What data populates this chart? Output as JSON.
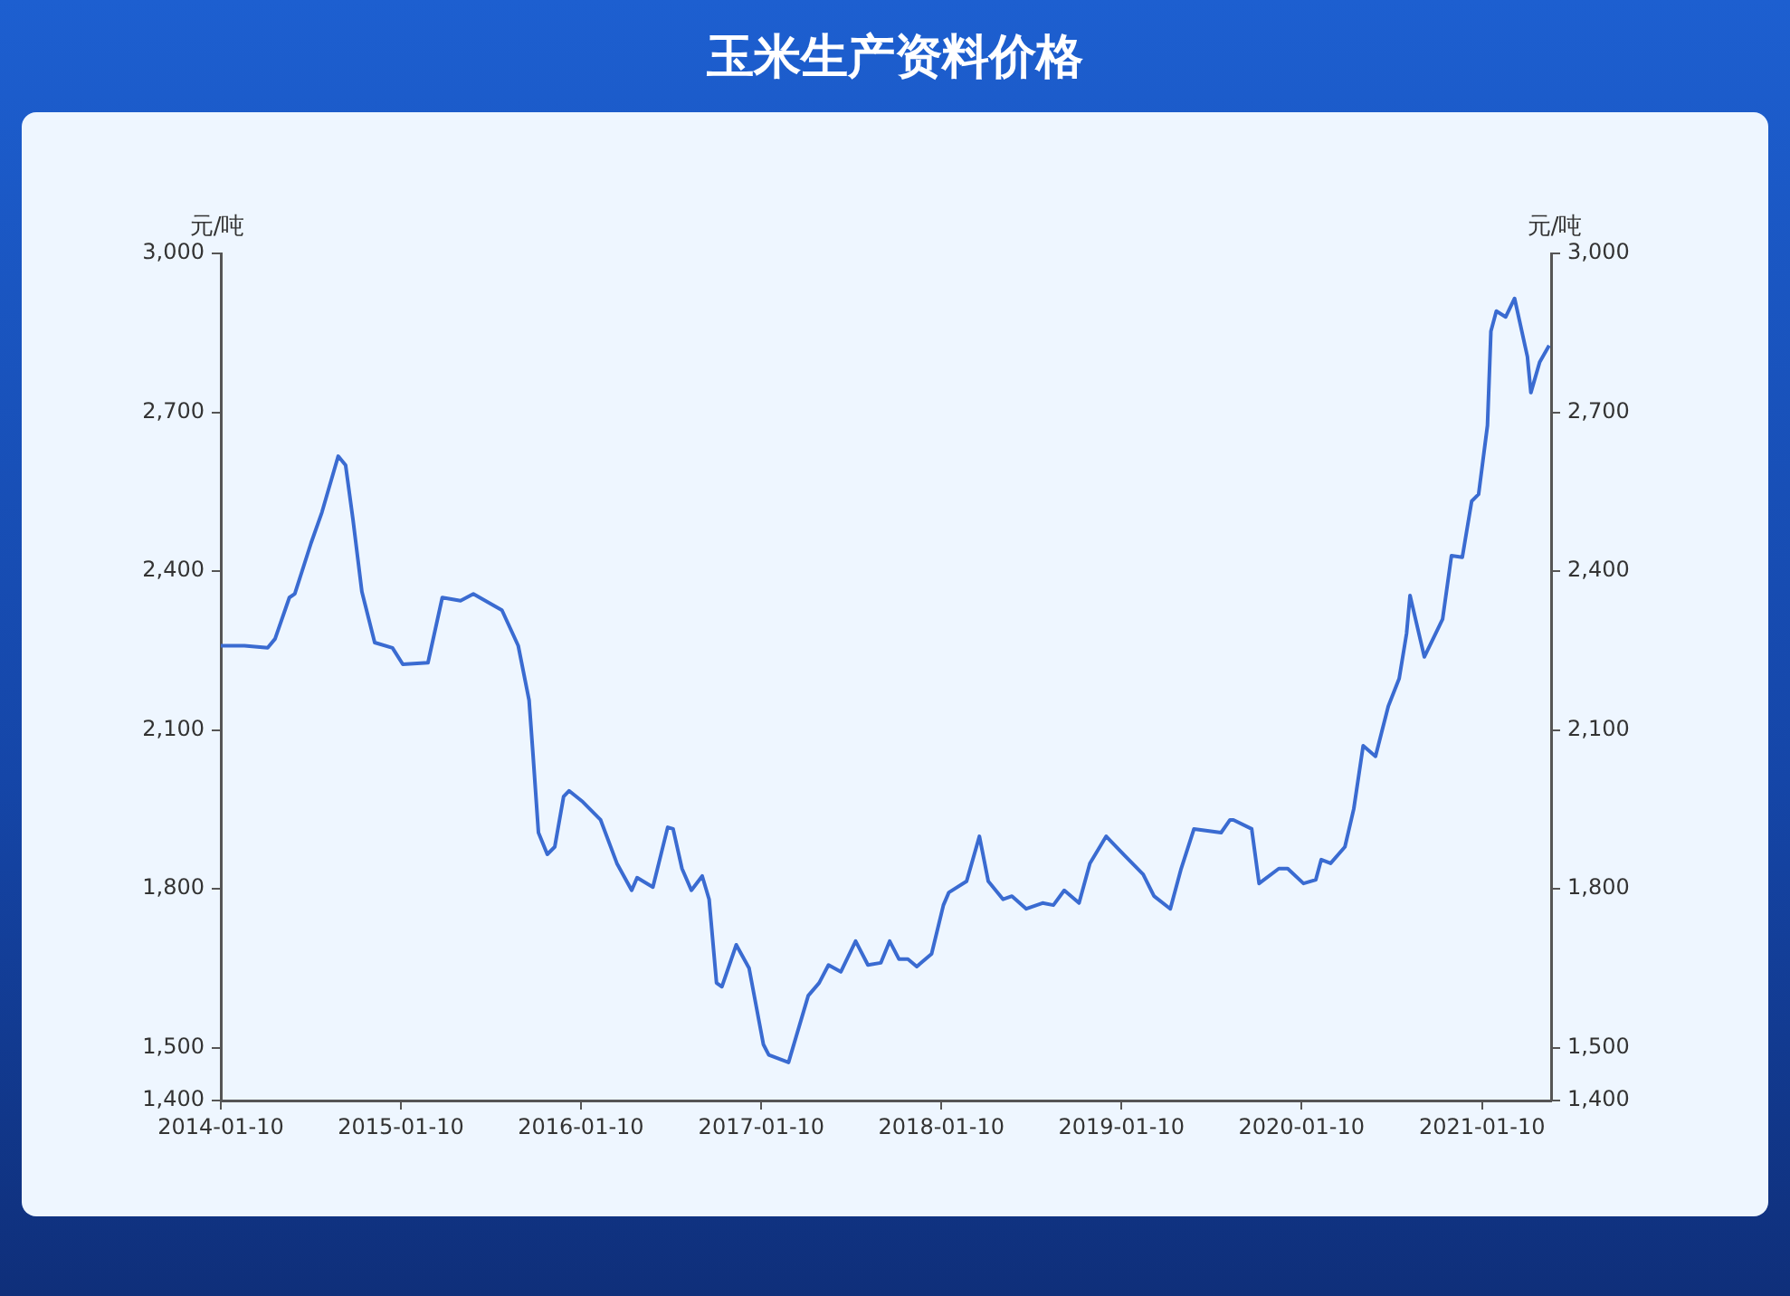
{
  "chart_data": {
    "type": "line",
    "title": "玉米生产资料价格",
    "ylabel": "元/吨",
    "y2label": "元/吨",
    "x": [
      "2014-01-10",
      "2014-02-27",
      "2014-04-15",
      "2014-04-30",
      "2014-05-29",
      "2014-06-09",
      "2014-07-12",
      "2014-08-03",
      "2014-09-05",
      "2014-09-20",
      "2014-10-05",
      "2014-10-23",
      "2014-11-18",
      "2014-12-24",
      "2015-01-14",
      "2015-03-06",
      "2015-04-04",
      "2015-05-11",
      "2015-06-06",
      "2015-08-03",
      "2015-09-05",
      "2015-09-27",
      "2015-10-05",
      "2015-10-16",
      "2015-11-03",
      "2015-11-18",
      "2015-12-06",
      "2015-12-17",
      "2016-01-14",
      "2016-02-19",
      "2016-03-23",
      "2016-04-22",
      "2016-05-03",
      "2016-06-04",
      "2016-07-04",
      "2016-07-15",
      "2016-08-02",
      "2016-08-21",
      "2016-09-12",
      "2016-09-26",
      "2016-10-11",
      "2016-10-22",
      "2016-11-20",
      "2016-12-16",
      "2017-01-14",
      "2017-01-25",
      "2017-03-06",
      "2017-04-15",
      "2017-05-07",
      "2017-05-26",
      "2017-06-20",
      "2017-07-20",
      "2017-08-14",
      "2017-09-09",
      "2017-09-27",
      "2017-10-16",
      "2017-11-03",
      "2017-11-21",
      "2017-12-21",
      "2018-01-14",
      "2018-01-25",
      "2018-03-02",
      "2018-03-28",
      "2018-04-15",
      "2018-05-15",
      "2018-06-02",
      "2018-07-01",
      "2018-08-03",
      "2018-08-25",
      "2018-09-16",
      "2018-10-16",
      "2018-11-07",
      "2018-12-10",
      "2019-01-17",
      "2019-02-23",
      "2019-03-17",
      "2019-04-19",
      "2019-05-11",
      "2019-06-06",
      "2019-07-31",
      "2019-08-18",
      "2019-08-25",
      "2019-10-01",
      "2019-10-16",
      "2019-11-25",
      "2019-12-13",
      "2020-01-14",
      "2020-02-08",
      "2020-02-19",
      "2020-03-09",
      "2020-04-07",
      "2020-04-25",
      "2020-05-14",
      "2020-06-08",
      "2020-07-04",
      "2020-07-26",
      "2020-08-10",
      "2020-08-17",
      "2020-09-15",
      "2020-10-22",
      "2020-11-09",
      "2020-12-01",
      "2020-12-20",
      "2021-01-03",
      "2021-01-21",
      "2021-01-28",
      "2021-02-08",
      "2021-02-27",
      "2021-03-17",
      "2021-04-12",
      "2021-04-19",
      "2021-05-07",
      "2021-05-26"
    ],
    "series": [
      {
        "color": "#3a6bd1",
        "values": [
          2259,
          2259,
          2255,
          2272,
          2350,
          2357,
          2453,
          2511,
          2617,
          2600,
          2497,
          2361,
          2265,
          2255,
          2224,
          2227,
          2350,
          2344,
          2357,
          2326,
          2259,
          2156,
          2053,
          1906,
          1865,
          1879,
          1974,
          1985,
          1964,
          1930,
          1848,
          1797,
          1821,
          1803,
          1916,
          1913,
          1838,
          1797,
          1824,
          1780,
          1622,
          1615,
          1694,
          1650,
          1506,
          1486,
          1472,
          1598,
          1622,
          1656,
          1643,
          1701,
          1656,
          1660,
          1701,
          1667,
          1667,
          1653,
          1677,
          1769,
          1793,
          1814,
          1899,
          1814,
          1780,
          1786,
          1762,
          1773,
          1769,
          1797,
          1773,
          1848,
          1899,
          1862,
          1827,
          1786,
          1762,
          1838,
          1913,
          1906,
          1930,
          1930,
          1913,
          1810,
          1838,
          1838,
          1810,
          1817,
          1855,
          1848,
          1879,
          1951,
          2070,
          2050,
          2145,
          2197,
          2282,
          2354,
          2238,
          2309,
          2429,
          2426,
          2532,
          2545,
          2675,
          2853,
          2891,
          2880,
          2915,
          2805,
          2737,
          2795,
          2826
        ]
      }
    ],
    "xlim": [
      "2014-01-10",
      "2021-05-30"
    ],
    "xticks": [
      "2014-01-10",
      "2015-01-10",
      "2016-01-10",
      "2017-01-10",
      "2018-01-10",
      "2019-01-10",
      "2020-01-10",
      "2021-01-10"
    ],
    "ylim": [
      1400,
      3000
    ],
    "yticks": [
      {
        "value": 1400,
        "label": "1,400"
      },
      {
        "value": 1500,
        "label": "1,500"
      },
      {
        "value": 1800,
        "label": "1,800"
      },
      {
        "value": 2100,
        "label": "2,100"
      },
      {
        "value": 2400,
        "label": "2,400"
      },
      {
        "value": 2700,
        "label": "2,700"
      },
      {
        "value": 3000,
        "label": "3,000"
      }
    ],
    "y2lim": [
      1400,
      3000
    ],
    "y2ticks": [
      {
        "value": 1400,
        "label": "1,400"
      },
      {
        "value": 1500,
        "label": "1,500"
      },
      {
        "value": 1800,
        "label": "1,800"
      },
      {
        "value": 2100,
        "label": "2,100"
      },
      {
        "value": 2400,
        "label": "2,400"
      },
      {
        "value": 2700,
        "label": "2,700"
      },
      {
        "value": 3000,
        "label": "3,000"
      }
    ],
    "grid": false,
    "legend": false,
    "marker": "none",
    "line_style": "solid"
  }
}
